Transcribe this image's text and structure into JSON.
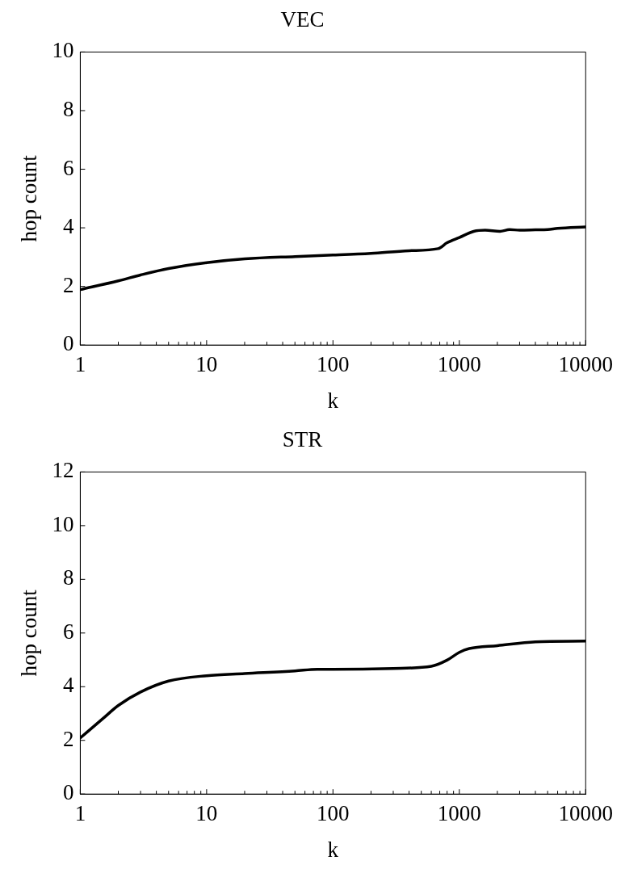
{
  "chart_data": [
    {
      "type": "line",
      "title": "VEC",
      "xlabel": "k",
      "ylabel": "hop count",
      "log": "x",
      "grid": false,
      "legend": false,
      "marker": "none",
      "line_style": "solid",
      "xlim": [
        1,
        10000
      ],
      "xticks": [
        1,
        {
          "value": 2,
          "label": null
        },
        {
          "value": 3,
          "label": null
        },
        {
          "value": 4,
          "label": null
        },
        {
          "value": 5,
          "label": null
        },
        {
          "value": 6,
          "label": null
        },
        {
          "value": 7,
          "label": null
        },
        {
          "value": 8,
          "label": null
        },
        {
          "value": 9,
          "label": null
        },
        10,
        {
          "value": 20,
          "label": null
        },
        {
          "value": 30,
          "label": null
        },
        {
          "value": 40,
          "label": null
        },
        {
          "value": 50,
          "label": null
        },
        {
          "value": 60,
          "label": null
        },
        {
          "value": 70,
          "label": null
        },
        {
          "value": 80,
          "label": null
        },
        {
          "value": 90,
          "label": null
        },
        100,
        {
          "value": 200,
          "label": null
        },
        {
          "value": 300,
          "label": null
        },
        {
          "value": 400,
          "label": null
        },
        {
          "value": 500,
          "label": null
        },
        {
          "value": 600,
          "label": null
        },
        {
          "value": 700,
          "label": null
        },
        {
          "value": 800,
          "label": null
        },
        {
          "value": 900,
          "label": null
        },
        1000,
        {
          "value": 2000,
          "label": null
        },
        {
          "value": 3000,
          "label": null
        },
        {
          "value": 4000,
          "label": null
        },
        {
          "value": 5000,
          "label": null
        },
        {
          "value": 6000,
          "label": null
        },
        {
          "value": 7000,
          "label": null
        },
        {
          "value": 8000,
          "label": null
        },
        {
          "value": 9000,
          "label": null
        },
        10000
      ],
      "ylim": [
        0,
        10
      ],
      "yticks": [
        0,
        2,
        4,
        6,
        8,
        10
      ],
      "series": [
        {
          "color": "#000000",
          "x": [
            1,
            2,
            3,
            5,
            10,
            20,
            50,
            100,
            200,
            400,
            680,
            800,
            1000,
            1300,
            1600,
            2100,
            2500,
            3000,
            4000,
            5000,
            6000,
            10000
          ],
          "values": [
            1.89,
            2.19,
            2.39,
            2.61,
            2.81,
            2.94,
            3.02,
            3.07,
            3.13,
            3.22,
            3.29,
            3.49,
            3.67,
            3.88,
            3.92,
            3.88,
            3.94,
            3.92,
            3.93,
            3.94,
            3.98,
            4.03
          ]
        }
      ]
    },
    {
      "type": "line",
      "title": "STR",
      "xlabel": "k",
      "ylabel": "hop count",
      "log": "x",
      "grid": false,
      "legend": false,
      "marker": "none",
      "line_style": "solid",
      "xlim": [
        1,
        10000
      ],
      "xticks": [
        1,
        {
          "value": 2,
          "label": null
        },
        {
          "value": 3,
          "label": null
        },
        {
          "value": 4,
          "label": null
        },
        {
          "value": 5,
          "label": null
        },
        {
          "value": 6,
          "label": null
        },
        {
          "value": 7,
          "label": null
        },
        {
          "value": 8,
          "label": null
        },
        {
          "value": 9,
          "label": null
        },
        10,
        {
          "value": 20,
          "label": null
        },
        {
          "value": 30,
          "label": null
        },
        {
          "value": 40,
          "label": null
        },
        {
          "value": 50,
          "label": null
        },
        {
          "value": 60,
          "label": null
        },
        {
          "value": 70,
          "label": null
        },
        {
          "value": 80,
          "label": null
        },
        {
          "value": 90,
          "label": null
        },
        100,
        {
          "value": 200,
          "label": null
        },
        {
          "value": 300,
          "label": null
        },
        {
          "value": 400,
          "label": null
        },
        {
          "value": 500,
          "label": null
        },
        {
          "value": 600,
          "label": null
        },
        {
          "value": 700,
          "label": null
        },
        {
          "value": 800,
          "label": null
        },
        {
          "value": 900,
          "label": null
        },
        1000,
        {
          "value": 2000,
          "label": null
        },
        {
          "value": 3000,
          "label": null
        },
        {
          "value": 4000,
          "label": null
        },
        {
          "value": 5000,
          "label": null
        },
        {
          "value": 6000,
          "label": null
        },
        {
          "value": 7000,
          "label": null
        },
        {
          "value": 8000,
          "label": null
        },
        {
          "value": 9000,
          "label": null
        },
        10000
      ],
      "ylim": [
        0,
        12
      ],
      "yticks": [
        0,
        2,
        4,
        6,
        8,
        10,
        12
      ],
      "series": [
        {
          "color": "#000000",
          "x": [
            1,
            1.5,
            2,
            3,
            5,
            10,
            20,
            50,
            75,
            100,
            300,
            600,
            800,
            1000,
            1200,
            2000,
            4000,
            10000
          ],
          "values": [
            2.09,
            2.8,
            3.3,
            3.8,
            4.21,
            4.41,
            4.49,
            4.59,
            4.65,
            4.65,
            4.68,
            4.76,
            4.99,
            5.28,
            5.42,
            5.53,
            5.67,
            5.7
          ]
        }
      ]
    }
  ]
}
